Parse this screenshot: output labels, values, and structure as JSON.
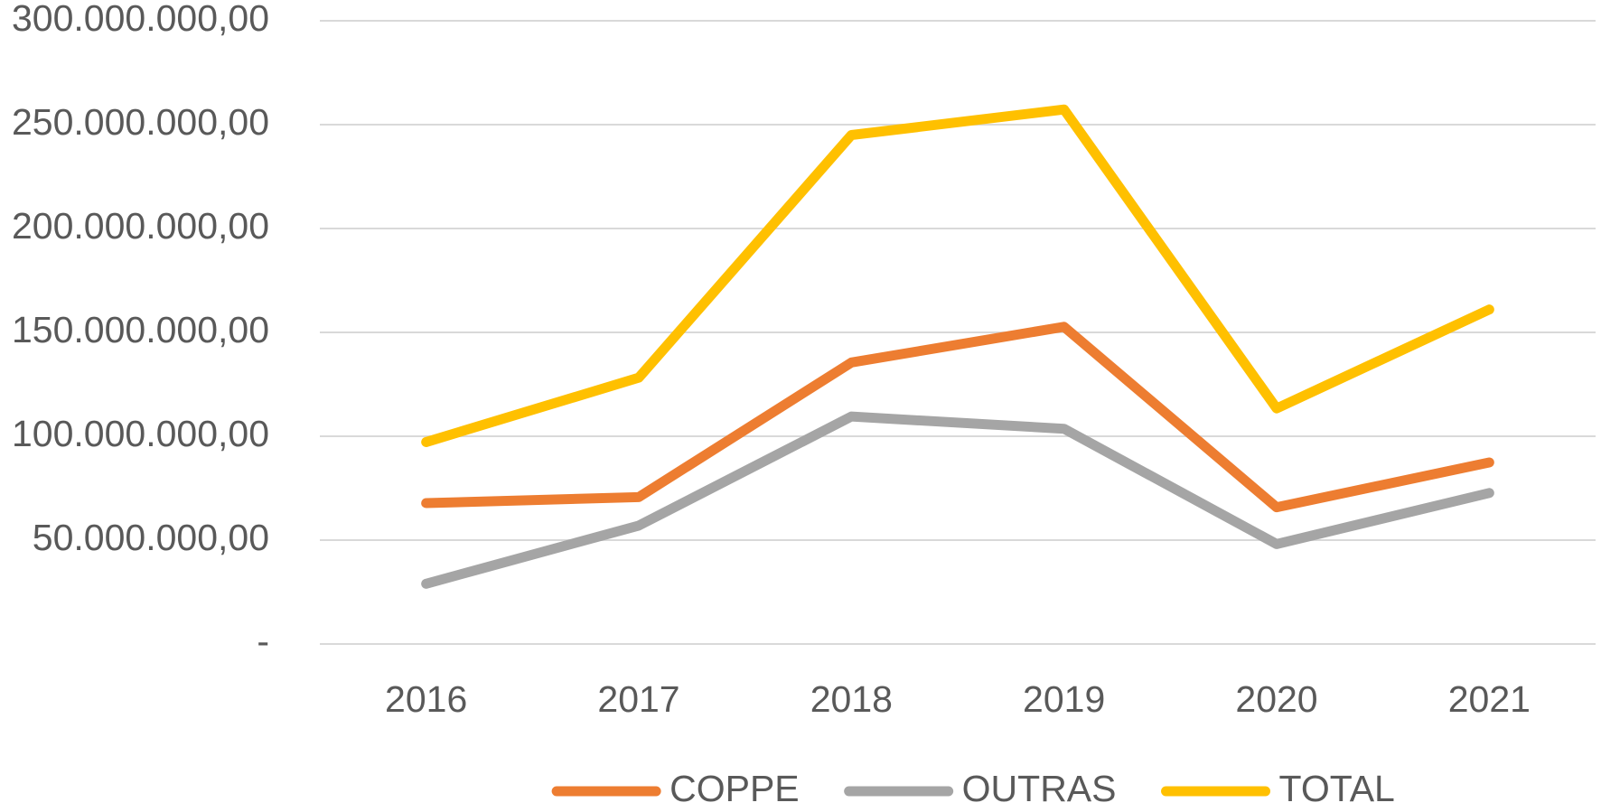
{
  "chart_data": {
    "type": "line",
    "categories": [
      "2016",
      "2017",
      "2018",
      "2019",
      "2020",
      "2021"
    ],
    "series": [
      {
        "name": "COPPE",
        "color": "#ed7d31",
        "values": [
          67800000,
          70700000,
          135500000,
          152700000,
          65800000,
          87400000
        ]
      },
      {
        "name": "OUTRAS",
        "color": "#a5a5a5",
        "values": [
          29000000,
          57000000,
          109500000,
          103600000,
          48100000,
          72700000
        ]
      },
      {
        "name": "TOTAL",
        "color": "#ffc000",
        "values": [
          97200000,
          128200000,
          245000000,
          257300000,
          113400000,
          161000000
        ]
      }
    ],
    "ylim": [
      0,
      300000000
    ],
    "yticks": [
      {
        "value": 0,
        "label": "-"
      },
      {
        "value": 50000000,
        "label": "50.000.000,00"
      },
      {
        "value": 100000000,
        "label": "100.000.000,00"
      },
      {
        "value": 150000000,
        "label": "150.000.000,00"
      },
      {
        "value": 200000000,
        "label": "200.000.000,00"
      },
      {
        "value": 250000000,
        "label": "250.000.000,00"
      },
      {
        "value": 300000000,
        "label": "300.000.000,00"
      }
    ],
    "grid": true,
    "legend": "bottom"
  }
}
